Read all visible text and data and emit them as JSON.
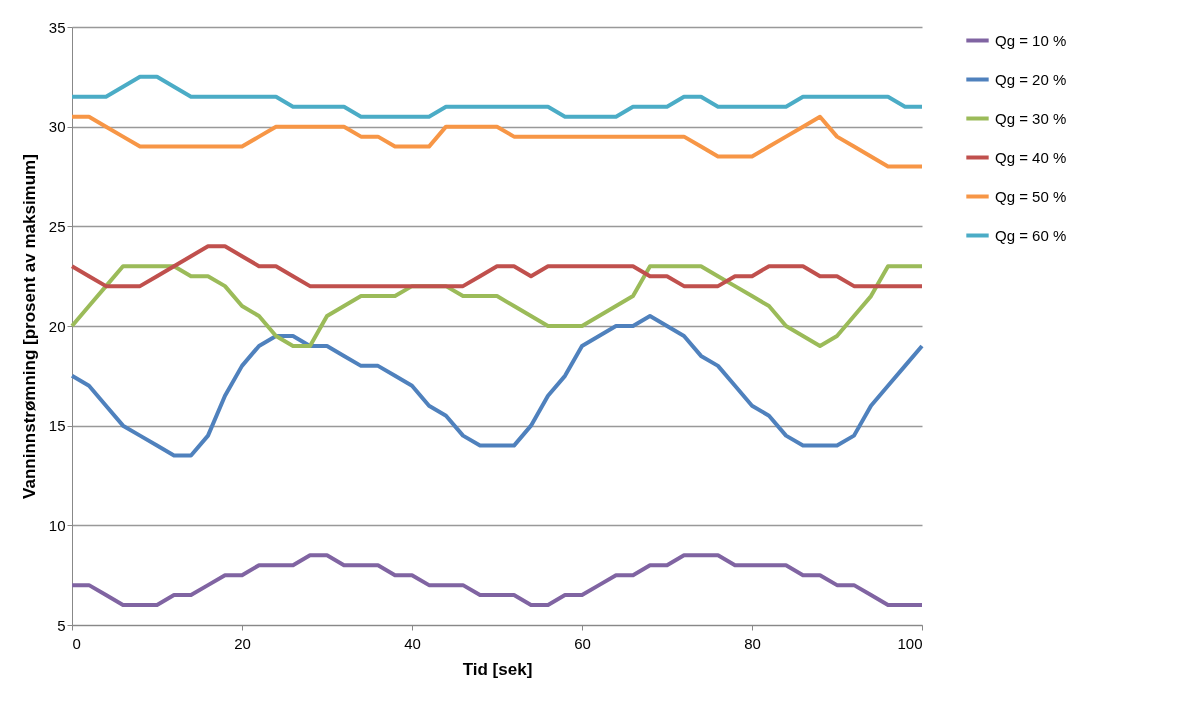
{
  "chart_data": {
    "type": "line",
    "xlabel": "Tid [sek]",
    "ylabel": "Vanninnstrømning [prosent av maksimum]",
    "x": [
      0,
      2,
      4,
      6,
      8,
      10,
      12,
      14,
      16,
      18,
      20,
      22,
      24,
      26,
      28,
      30,
      32,
      34,
      36,
      38,
      40,
      42,
      44,
      46,
      48,
      50,
      52,
      54,
      56,
      58,
      60,
      62,
      64,
      66,
      68,
      70,
      72,
      74,
      76,
      78,
      80,
      82,
      84,
      86,
      88,
      90,
      92,
      94,
      96,
      98,
      100
    ],
    "xlim": [
      0,
      100
    ],
    "xticks": [
      0,
      20,
      40,
      60,
      80,
      100
    ],
    "ylim": [
      5,
      35
    ],
    "yticks": [
      5,
      10,
      15,
      20,
      25,
      30,
      35
    ],
    "grid": "y",
    "legend": "right",
    "marker": "none",
    "line_style": "solid",
    "series": [
      {
        "name": "Qg = 10 %",
        "color": "#8064a2",
        "values": [
          7,
          7,
          6.5,
          6,
          6,
          6,
          6.5,
          6.5,
          7,
          7.5,
          7.5,
          8,
          8,
          8,
          8.5,
          8.5,
          8,
          8,
          8,
          7.5,
          7.5,
          7,
          7,
          7,
          6.5,
          6.5,
          6.5,
          6,
          6,
          6.5,
          6.5,
          7,
          7.5,
          7.5,
          8,
          8,
          8.5,
          8.5,
          8.5,
          8,
          8,
          8,
          8,
          7.5,
          7.5,
          7,
          7,
          6.5,
          6,
          6,
          6
        ]
      },
      {
        "name": "Qg = 20 %",
        "color": "#4f81bd",
        "values": [
          17.5,
          17,
          16,
          15,
          14.5,
          14,
          13.5,
          13.5,
          14.5,
          16.5,
          18,
          19,
          19.5,
          19.5,
          19,
          19,
          18.5,
          18,
          18,
          17.5,
          17,
          16,
          15.5,
          14.5,
          14,
          14,
          14,
          15,
          16.5,
          17.5,
          19,
          19.5,
          20,
          20,
          20.5,
          20,
          19.5,
          18.5,
          18,
          17,
          16,
          15.5,
          14.5,
          14,
          14,
          14,
          14.5,
          16,
          17,
          18,
          19
        ]
      },
      {
        "name": "Qg = 30 %",
        "color": "#9bbb59",
        "values": [
          20,
          21,
          22,
          23,
          23,
          23,
          23,
          22.5,
          22.5,
          22,
          21,
          20.5,
          19.5,
          19,
          19,
          20.5,
          21,
          21.5,
          21.5,
          21.5,
          22,
          22,
          22,
          21.5,
          21.5,
          21.5,
          21,
          20.5,
          20,
          20,
          20,
          20.5,
          21,
          21.5,
          23,
          23,
          23,
          23,
          22.5,
          22,
          21.5,
          21,
          20,
          19.5,
          19,
          19.5,
          20.5,
          21.5,
          23,
          23,
          23
        ]
      },
      {
        "name": "Qg = 40 %",
        "color": "#c0504d",
        "values": [
          23,
          22.5,
          22,
          22,
          22,
          22.5,
          23,
          23.5,
          24,
          24,
          23.5,
          23,
          23,
          22.5,
          22,
          22,
          22,
          22,
          22,
          22,
          22,
          22,
          22,
          22,
          22.5,
          23,
          23,
          22.5,
          23,
          23,
          23,
          23,
          23,
          23,
          22.5,
          22.5,
          22,
          22,
          22,
          22.5,
          22.5,
          23,
          23,
          23,
          22.5,
          22.5,
          22,
          22,
          22,
          22,
          22
        ]
      },
      {
        "name": "Qg = 50 %",
        "color": "#f79646",
        "values": [
          30.5,
          30.5,
          30,
          29.5,
          29,
          29,
          29,
          29,
          29,
          29,
          29,
          29.5,
          30,
          30,
          30,
          30,
          30,
          29.5,
          29.5,
          29,
          29,
          29,
          30,
          30,
          30,
          30,
          29.5,
          29.5,
          29.5,
          29.5,
          29.5,
          29.5,
          29.5,
          29.5,
          29.5,
          29.5,
          29.5,
          29,
          28.5,
          28.5,
          28.5,
          29,
          29.5,
          30,
          30.5,
          29.5,
          29,
          28.5,
          28,
          28,
          28
        ]
      },
      {
        "name": "Qg = 60 %",
        "color": "#4bacc6",
        "values": [
          31.5,
          31.5,
          31.5,
          32,
          32.5,
          32.5,
          32,
          31.5,
          31.5,
          31.5,
          31.5,
          31.5,
          31.5,
          31,
          31,
          31,
          31,
          30.5,
          30.5,
          30.5,
          30.5,
          30.5,
          31,
          31,
          31,
          31,
          31,
          31,
          31,
          30.5,
          30.5,
          30.5,
          30.5,
          31,
          31,
          31,
          31.5,
          31.5,
          31,
          31,
          31,
          31,
          31,
          31.5,
          31.5,
          31.5,
          31.5,
          31.5,
          31.5,
          31,
          31
        ]
      }
    ]
  }
}
